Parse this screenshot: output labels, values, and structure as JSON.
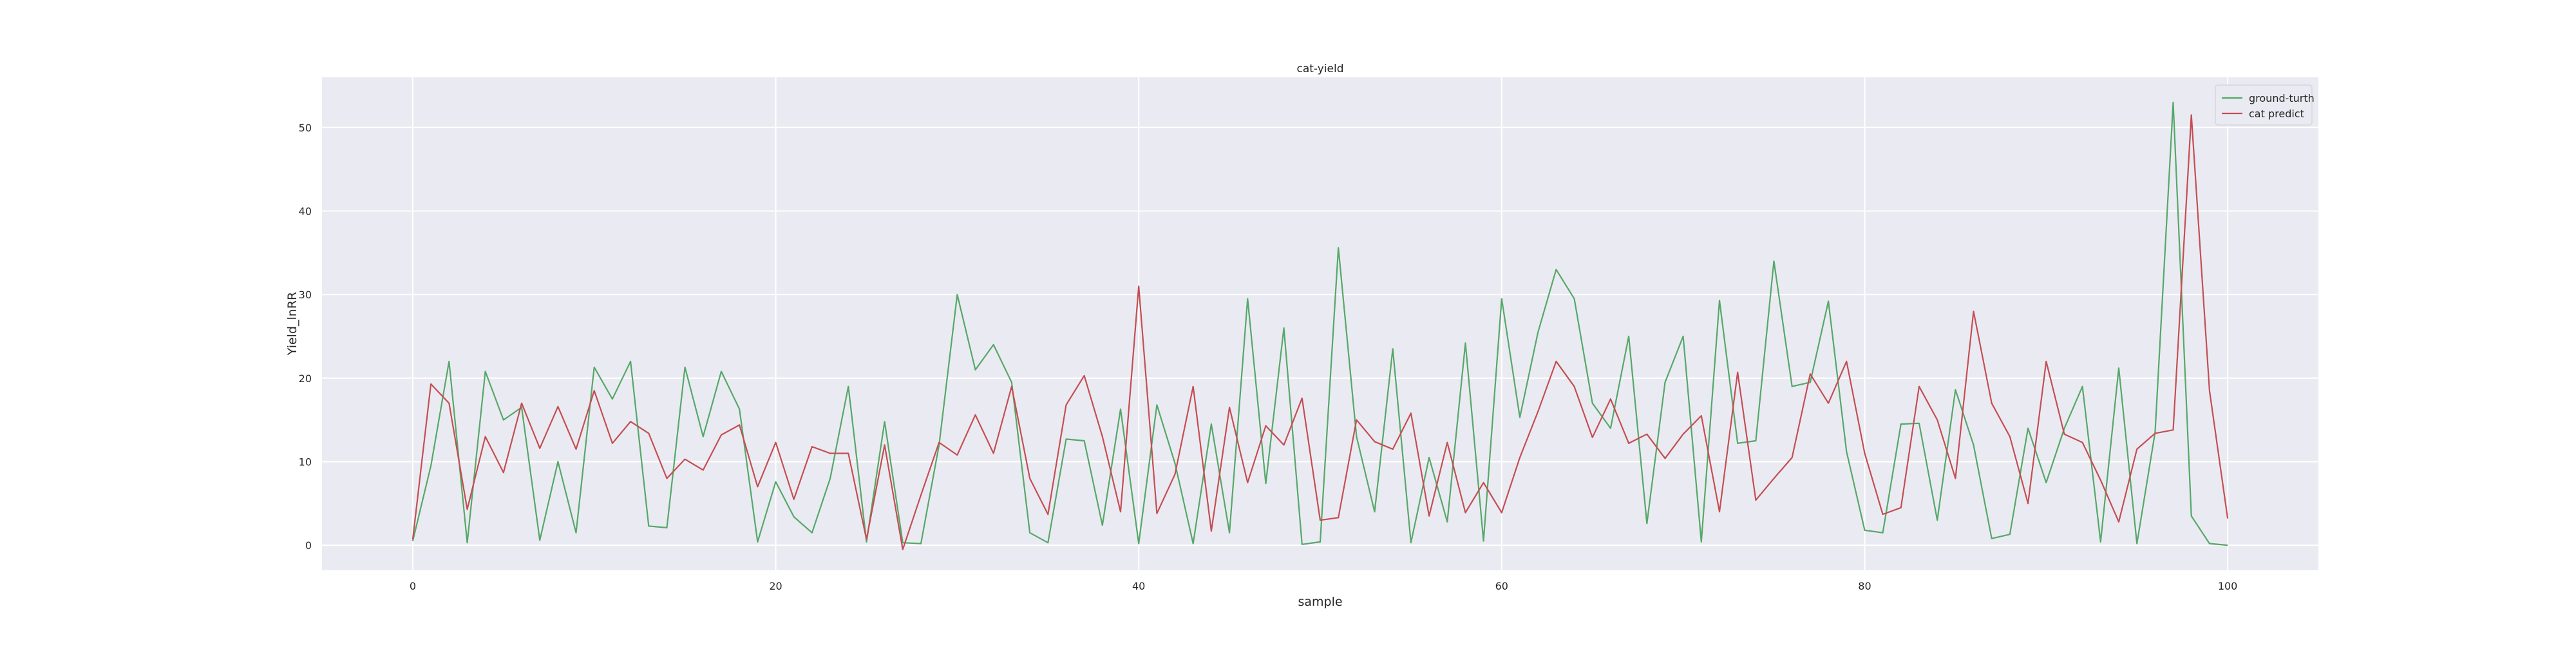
{
  "chart_data": {
    "type": "line",
    "title": "cat-yield",
    "xlabel": "sample",
    "ylabel": "Yield_lnRR",
    "xlim": [
      -5,
      105
    ],
    "ylim": [
      -3,
      56
    ],
    "xticks": [
      0,
      20,
      40,
      60,
      80,
      100
    ],
    "yticks": [
      0,
      10,
      20,
      30,
      40,
      50
    ],
    "grid": true,
    "legend": "top-right",
    "background_color": "#eaeaf2",
    "x": [
      0,
      1,
      2,
      3,
      4,
      5,
      6,
      7,
      8,
      9,
      10,
      11,
      12,
      13,
      14,
      15,
      16,
      17,
      18,
      19,
      20,
      21,
      22,
      23,
      24,
      25,
      26,
      27,
      28,
      29,
      30,
      31,
      32,
      33,
      34,
      35,
      36,
      37,
      38,
      39,
      40,
      41,
      42,
      43,
      44,
      45,
      46,
      47,
      48,
      49,
      50,
      51,
      52,
      53,
      54,
      55,
      56,
      57,
      58,
      59,
      60,
      61,
      62,
      63,
      64,
      65,
      66,
      67,
      68,
      69,
      70,
      71,
      72,
      73,
      74,
      75,
      76,
      77,
      78,
      79,
      80,
      81,
      82,
      83,
      84,
      85,
      86,
      87,
      88,
      89,
      90,
      91,
      92,
      93,
      94,
      95,
      96,
      97,
      98,
      99,
      100
    ],
    "series": [
      {
        "name": "ground-turth",
        "color": "#55a868",
        "values": [
          0.5,
          9.5,
          22.0,
          0.3,
          20.8,
          15.0,
          16.5,
          0.6,
          10.0,
          1.5,
          21.3,
          17.5,
          22.0,
          2.3,
          2.1,
          21.3,
          13.0,
          20.8,
          16.3,
          0.4,
          7.6,
          3.4,
          1.5,
          8.0,
          19.0,
          0.4,
          14.8,
          0.3,
          0.2,
          12.0,
          30.0,
          21.0,
          24.0,
          19.5,
          1.5,
          0.3,
          12.7,
          12.5,
          2.4,
          16.3,
          0.2,
          16.8,
          9.8,
          0.2,
          14.5,
          1.5,
          29.5,
          7.4,
          26.0,
          0.1,
          0.4,
          35.6,
          13.0,
          4.0,
          23.5,
          0.3,
          10.5,
          2.8,
          24.2,
          0.5,
          29.5,
          15.3,
          25.5,
          33.0,
          29.5,
          17.0,
          14.0,
          25.0,
          2.6,
          19.5,
          25.0,
          0.4,
          29.3,
          12.2,
          12.5,
          34.0,
          19.0,
          19.5,
          29.2,
          11.2,
          1.8,
          1.5,
          14.5,
          14.6,
          3.0,
          18.6,
          12.0,
          0.8,
          1.3,
          14.0,
          7.5,
          14.0,
          19.0,
          0.4,
          21.2,
          0.2,
          13.5,
          53.0,
          3.5,
          0.2,
          0.0
        ]
      },
      {
        "name": "cat predict",
        "color": "#c44e52",
        "values": [
          0.7,
          19.3,
          17.0,
          4.3,
          13.0,
          8.7,
          17.0,
          11.6,
          16.6,
          11.5,
          18.5,
          12.2,
          14.8,
          13.4,
          8.0,
          10.3,
          9.0,
          13.2,
          14.4,
          7.0,
          12.3,
          5.5,
          11.8,
          11.0,
          11.0,
          0.7,
          12.0,
          -0.5,
          6.0,
          12.3,
          10.8,
          15.6,
          11.0,
          19.0,
          8.0,
          3.7,
          16.8,
          20.3,
          13.0,
          4.0,
          31.0,
          3.8,
          8.5,
          19.0,
          1.7,
          16.5,
          7.5,
          14.3,
          12.0,
          17.6,
          3.0,
          3.3,
          15.0,
          12.4,
          11.5,
          15.8,
          3.5,
          12.3,
          3.9,
          7.5,
          3.9,
          10.5,
          16.0,
          22.0,
          19.0,
          12.9,
          17.5,
          12.2,
          13.3,
          10.4,
          13.3,
          15.5,
          4.0,
          20.7,
          5.4,
          8.0,
          10.5,
          20.5,
          17.0,
          22.0,
          11.0,
          3.7,
          4.5,
          19.0,
          15.0,
          8.0,
          28.0,
          17.0,
          13.0,
          5.0,
          22.0,
          13.3,
          12.3,
          7.8,
          2.8,
          11.5,
          13.4,
          13.8,
          51.5,
          18.5,
          3.2
        ]
      }
    ]
  }
}
